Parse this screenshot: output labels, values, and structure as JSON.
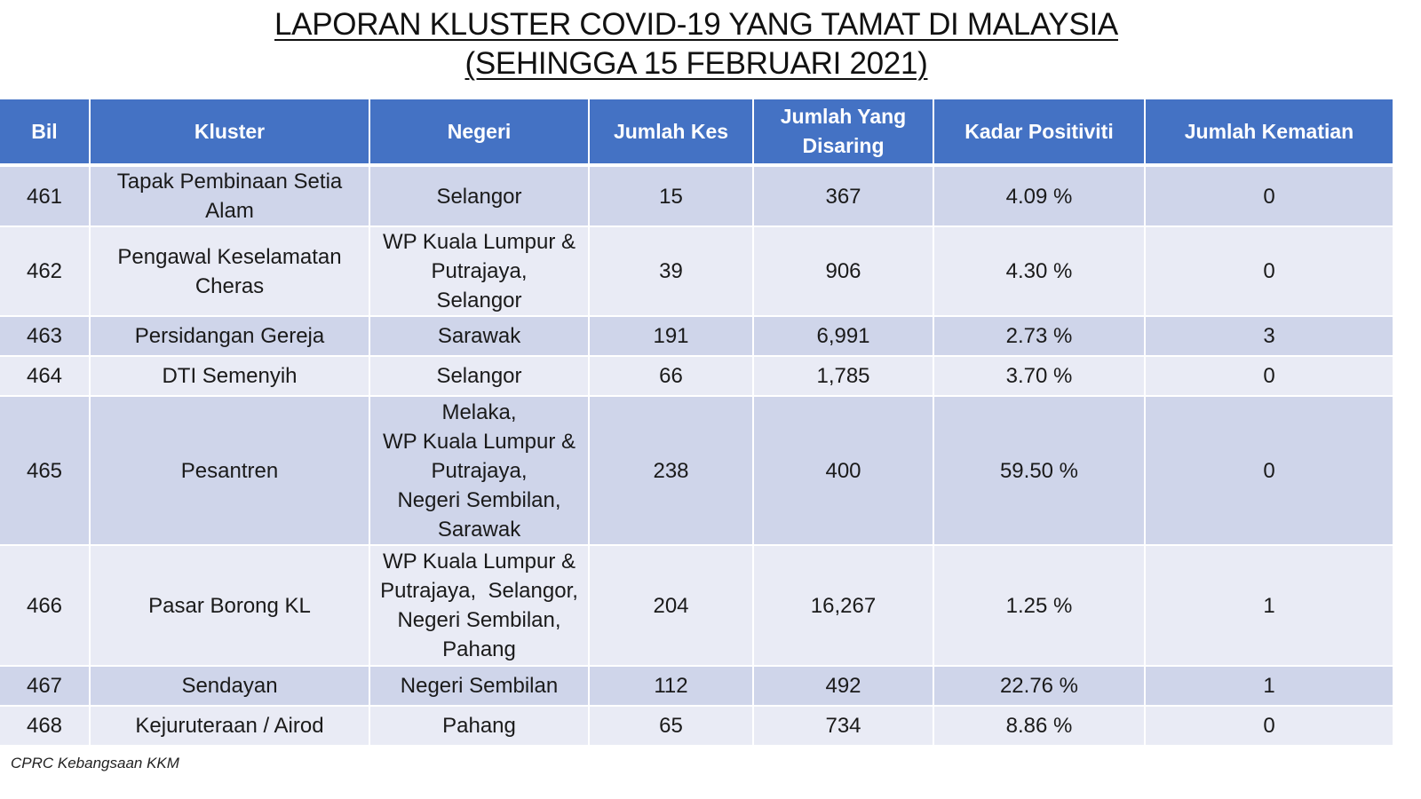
{
  "title": {
    "line1": "LAPORAN KLUSTER COVID-19 YANG TAMAT DI MALAYSIA",
    "line2": "(SEHINGGA 15 FEBRUARI 2021)"
  },
  "table": {
    "headers": [
      "Bil",
      "Kluster",
      "Negeri",
      "Jumlah Kes",
      "Jumlah Yang Disaring",
      "Kadar Positiviti",
      "Jumlah Kematian"
    ],
    "rows": [
      {
        "bil": "461",
        "kluster": [
          "Tapak Pembinaan Setia",
          "Alam"
        ],
        "negeri": [
          "Selangor"
        ],
        "kes": "15",
        "disaring": "367",
        "positiviti": "4.09 %",
        "kematian": "0"
      },
      {
        "bil": "462",
        "kluster": [
          "Pengawal Keselamatan",
          "Cheras"
        ],
        "negeri": [
          "WP Kuala Lumpur &",
          "Putrajaya,",
          "Selangor"
        ],
        "kes": "39",
        "disaring": "906",
        "positiviti": "4.30 %",
        "kematian": "0"
      },
      {
        "bil": "463",
        "kluster": [
          "Persidangan Gereja"
        ],
        "negeri": [
          "Sarawak"
        ],
        "kes": "191",
        "disaring": "6,991",
        "positiviti": "2.73 %",
        "kematian": "3"
      },
      {
        "bil": "464",
        "kluster": [
          "DTI Semenyih"
        ],
        "negeri": [
          "Selangor"
        ],
        "kes": "66",
        "disaring": "1,785",
        "positiviti": "3.70 %",
        "kematian": "0"
      },
      {
        "bil": "465",
        "kluster": [
          "Pesantren"
        ],
        "negeri": [
          "Melaka,",
          "WP Kuala Lumpur &",
          "Putrajaya,",
          "Negeri Sembilan,",
          "Sarawak"
        ],
        "kes": "238",
        "disaring": "400",
        "positiviti": "59.50 %",
        "kematian": "0"
      },
      {
        "bil": "466",
        "kluster": [
          "Pasar Borong KL"
        ],
        "negeri": [
          "WP Kuala Lumpur &",
          "Putrajaya,  Selangor,",
          "Negeri Sembilan,",
          "Pahang"
        ],
        "kes": "204",
        "disaring": "16,267",
        "positiviti": "1.25 %",
        "kematian": "1"
      },
      {
        "bil": "467",
        "kluster": [
          "Sendayan"
        ],
        "negeri": [
          "Negeri Sembilan"
        ],
        "kes": "112",
        "disaring": "492",
        "positiviti": "22.76 %",
        "kematian": "1"
      },
      {
        "bil": "468",
        "kluster": [
          "Kejuruteraan / Airod"
        ],
        "negeri": [
          "Pahang"
        ],
        "kes": "65",
        "disaring": "734",
        "positiviti": "8.86 %",
        "kematian": "0"
      }
    ]
  },
  "footer": "CPRC Kebangsaan KKM",
  "colors": {
    "header_bg": "#4472c4",
    "row_odd_bg": "#cfd5ea",
    "row_even_bg": "#e9ebf5"
  }
}
